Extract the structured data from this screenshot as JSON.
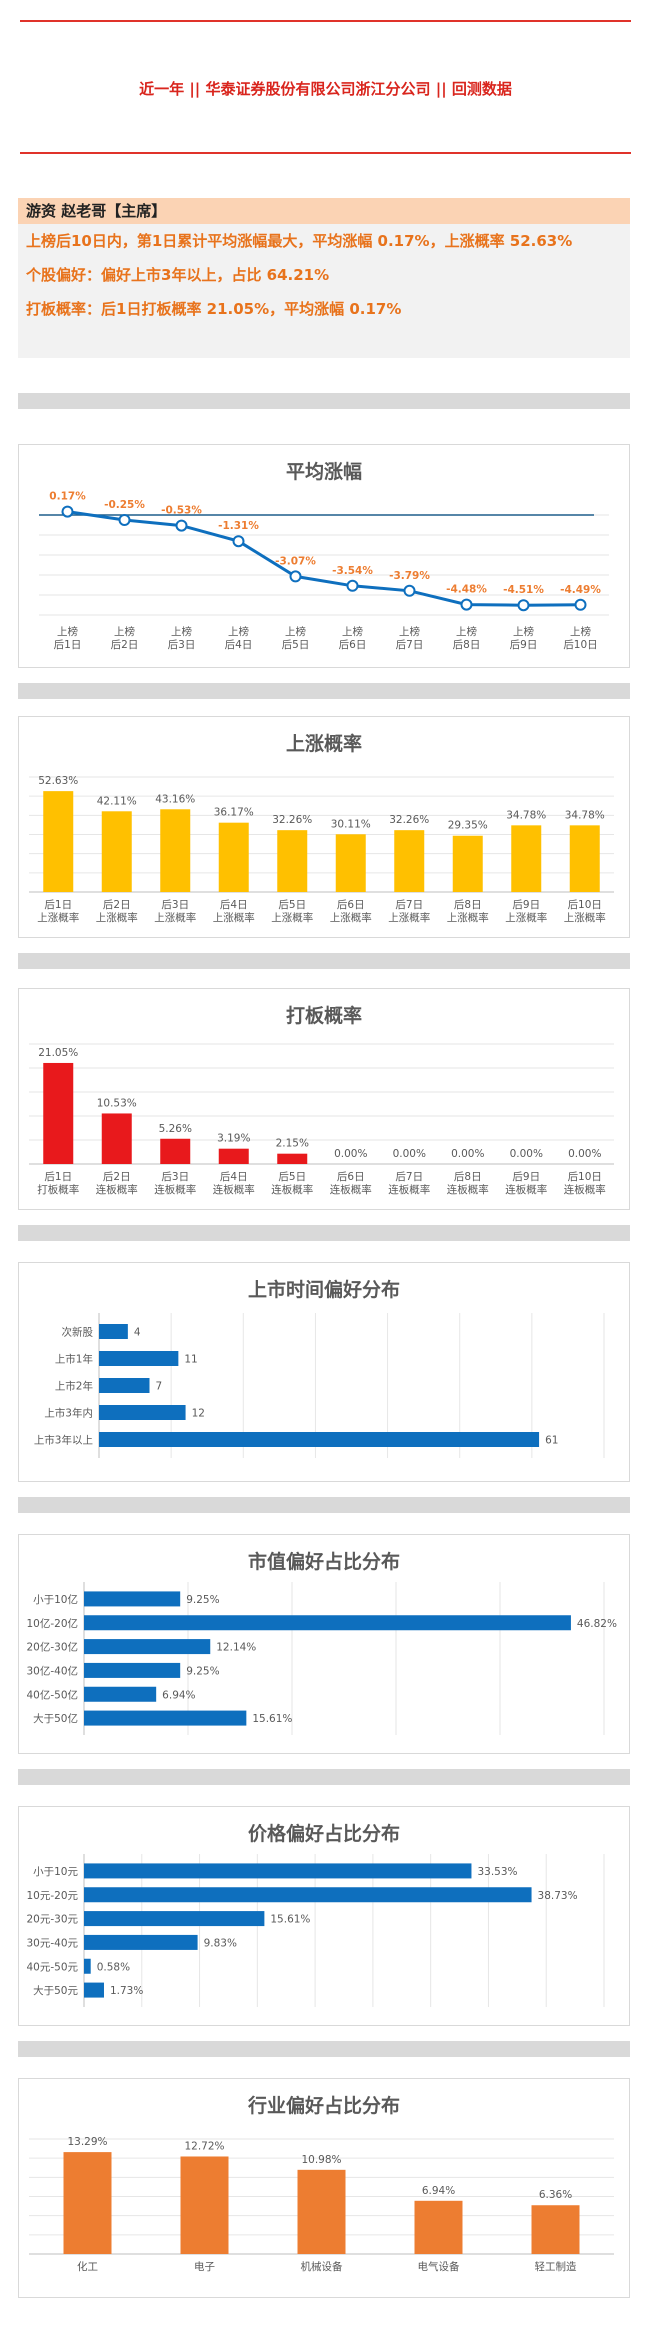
{
  "header": {
    "title": "近一年  ||  华泰证券股份有限公司浙江分公司  ||  回测数据"
  },
  "summary": {
    "head": "游资  赵老哥【主席】",
    "lines": [
      "上榜后10日内，第1日累计平均涨幅最大，平均涨幅 0.17%，上涨概率 52.63%",
      "个股偏好：偏好上市3年以上，占比 64.21%",
      "打板概率：后1日打板概率 21.05%，平均涨幅 0.17%"
    ]
  },
  "colors": {
    "blue": "#0e6fbe",
    "yellow": "#ffc000",
    "red": "#e8191c",
    "orange": "#ed7d31",
    "gray": "#d9d9d9"
  },
  "chart_data": [
    {
      "id": "avg",
      "type": "line",
      "title": "平均涨幅",
      "categories": [
        "上榜\n后1日",
        "上榜\n后2日",
        "上榜\n后3日",
        "上榜\n后4日",
        "上榜\n后5日",
        "上榜\n后6日",
        "上榜\n后7日",
        "上榜\n后8日",
        "上榜\n后9日",
        "上榜\n后10日"
      ],
      "values": [
        0.17,
        -0.25,
        -0.53,
        -1.31,
        -3.07,
        -3.54,
        -3.79,
        -4.48,
        -4.51,
        -4.49
      ],
      "labels": [
        "0.17%",
        "-0.25%",
        "-0.53%",
        "-1.31%",
        "-3.07%",
        "-3.54%",
        "-3.79%",
        "-4.48%",
        "-4.51%",
        "-4.49%"
      ],
      "ylim": [
        -5,
        0.5
      ],
      "reference_line": 0,
      "grid": true
    },
    {
      "id": "up",
      "type": "bar",
      "title": "上涨概率",
      "categories": [
        "后1日\n上涨概率",
        "后2日\n上涨概率",
        "后3日\n上涨概率",
        "后4日\n上涨概率",
        "后5日\n上涨概率",
        "后6日\n上涨概率",
        "后7日\n上涨概率",
        "后8日\n上涨概率",
        "后9日\n上涨概率",
        "后10日\n上涨概率"
      ],
      "values": [
        52.63,
        42.11,
        43.16,
        36.17,
        32.26,
        30.11,
        32.26,
        29.35,
        34.78,
        34.78
      ],
      "labels": [
        "52.63%",
        "42.11%",
        "43.16%",
        "36.17%",
        "32.26%",
        "30.11%",
        "32.26%",
        "29.35%",
        "34.78%",
        "34.78%"
      ],
      "ylim": [
        0,
        60
      ],
      "color": "#ffc000",
      "grid": true
    },
    {
      "id": "board",
      "type": "bar",
      "title": "打板概率",
      "categories": [
        "后1日\n打板概率",
        "后2日\n连板概率",
        "后3日\n连板概率",
        "后4日\n连板概率",
        "后5日\n连板概率",
        "后6日\n连板概率",
        "后7日\n连板概率",
        "后8日\n连板概率",
        "后9日\n连板概率",
        "后10日\n连板概率"
      ],
      "values": [
        21.05,
        10.53,
        5.26,
        3.19,
        2.15,
        0,
        0,
        0,
        0,
        0
      ],
      "labels": [
        "21.05%",
        "10.53%",
        "5.26%",
        "3.19%",
        "2.15%",
        "0.00%",
        "0.00%",
        "0.00%",
        "0.00%",
        "0.00%"
      ],
      "ylim": [
        0,
        25
      ],
      "color": "#e8191c",
      "grid": true
    },
    {
      "id": "listing",
      "type": "hbar",
      "title": "上市时间偏好分布",
      "categories": [
        "次新股",
        "上市1年",
        "上市2年",
        "上市3年内",
        "上市3年以上"
      ],
      "values": [
        4,
        11,
        7,
        12,
        61
      ],
      "labels": [
        "4",
        "11",
        "7",
        "12",
        "61"
      ],
      "xlim": [
        0,
        70
      ],
      "color": "#0e6fbe",
      "grid": true
    },
    {
      "id": "mcap",
      "type": "hbar",
      "title": "市值偏好占比分布",
      "categories": [
        "小于10亿",
        "10亿-20亿",
        "20亿-30亿",
        "30亿-40亿",
        "40亿-50亿",
        "大于50亿"
      ],
      "values": [
        9.25,
        46.82,
        12.14,
        9.25,
        6.94,
        15.61
      ],
      "labels": [
        "9.25%",
        "46.82%",
        "12.14%",
        "9.25%",
        "6.94%",
        "15.61%"
      ],
      "xlim": [
        0,
        50
      ],
      "color": "#0e6fbe",
      "grid": true
    },
    {
      "id": "price",
      "type": "hbar",
      "title": "价格偏好占比分布",
      "categories": [
        "小于10元",
        "10元-20元",
        "20元-30元",
        "30元-40元",
        "40元-50元",
        "大于50元"
      ],
      "values": [
        33.53,
        38.73,
        15.61,
        9.83,
        0.58,
        1.73
      ],
      "labels": [
        "33.53%",
        "38.73%",
        "15.61%",
        "9.83%",
        "0.58%",
        "1.73%"
      ],
      "xlim": [
        0,
        45
      ],
      "color": "#0e6fbe",
      "grid": true
    },
    {
      "id": "industry",
      "type": "bar",
      "title": "行业偏好占比分布",
      "categories": [
        "化工",
        "电子",
        "机械设备",
        "电气设备",
        "轻工制造"
      ],
      "values": [
        13.29,
        12.72,
        10.98,
        6.94,
        6.36
      ],
      "labels": [
        "13.29%",
        "12.72%",
        "10.98%",
        "6.94%",
        "6.36%"
      ],
      "ylim": [
        0,
        15
      ],
      "color": "#ed7d31",
      "grid": true
    }
  ]
}
